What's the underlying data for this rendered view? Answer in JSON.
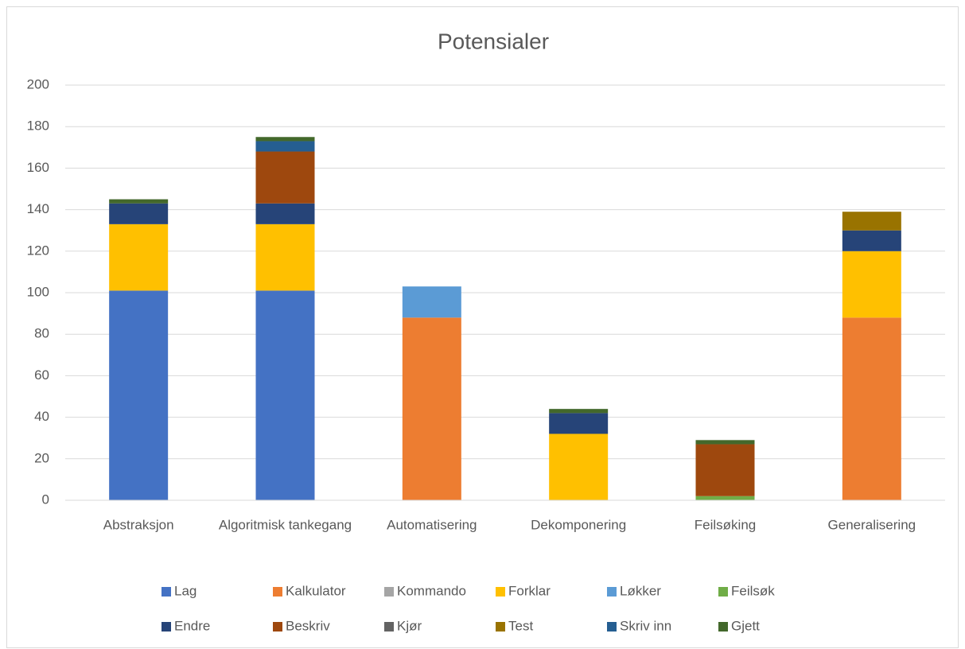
{
  "chart_data": {
    "type": "stacked_bar",
    "title": "Potensialer",
    "categories": [
      "Abstraksjon",
      "Algoritmisk tankegang",
      "Automatisering",
      "Dekomponering",
      "Feilsøking",
      "Generalisering"
    ],
    "series": [
      {
        "name": "Lag",
        "color": "#4472c4",
        "values": [
          101,
          101,
          0,
          0,
          0,
          0
        ]
      },
      {
        "name": "Kalkulator",
        "color": "#ed7d31",
        "values": [
          0,
          0,
          88,
          0,
          0,
          88
        ]
      },
      {
        "name": "Kommando",
        "color": "#a5a5a5",
        "values": [
          0,
          0,
          0,
          0,
          0,
          0
        ]
      },
      {
        "name": "Forklar",
        "color": "#ffc000",
        "values": [
          32,
          32,
          0,
          32,
          0,
          32
        ]
      },
      {
        "name": "Løkker",
        "color": "#5b9bd5",
        "values": [
          0,
          0,
          15,
          0,
          0,
          0
        ]
      },
      {
        "name": "Feilsøk",
        "color": "#70ad47",
        "values": [
          0,
          0,
          0,
          0,
          2,
          0
        ]
      },
      {
        "name": "Endre",
        "color": "#264478",
        "values": [
          10,
          10,
          0,
          10,
          0,
          10
        ]
      },
      {
        "name": "Beskriv",
        "color": "#9e480e",
        "values": [
          0,
          25,
          0,
          0,
          25,
          0
        ]
      },
      {
        "name": "Kjør",
        "color": "#636363",
        "values": [
          0,
          0,
          0,
          0,
          0,
          0
        ]
      },
      {
        "name": "Test",
        "color": "#997300",
        "values": [
          0,
          0,
          0,
          0,
          0,
          9
        ]
      },
      {
        "name": "Skriv inn",
        "color": "#255e91",
        "values": [
          0,
          5,
          0,
          0,
          0,
          0
        ]
      },
      {
        "name": "Gjett",
        "color": "#43682b",
        "values": [
          2,
          2,
          0,
          2,
          2,
          0
        ]
      }
    ],
    "ylim": [
      0,
      200
    ],
    "yticks": [
      0,
      20,
      40,
      60,
      80,
      100,
      120,
      140,
      160,
      180,
      200
    ],
    "grid": true
  }
}
